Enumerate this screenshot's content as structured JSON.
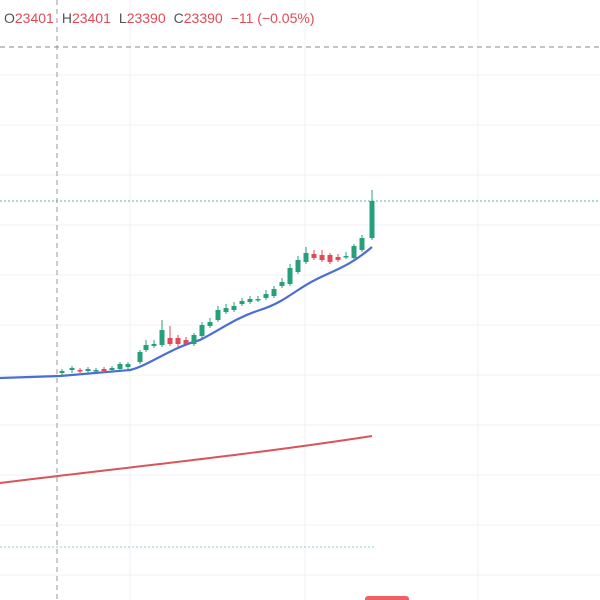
{
  "legend": {
    "open_label": "O",
    "open": "23401",
    "high_label": "H",
    "high": "23401",
    "low_label": "L",
    "low": "23390",
    "close_label": "C",
    "close": "23390",
    "change": "−11 (−0.05%)"
  }
}
